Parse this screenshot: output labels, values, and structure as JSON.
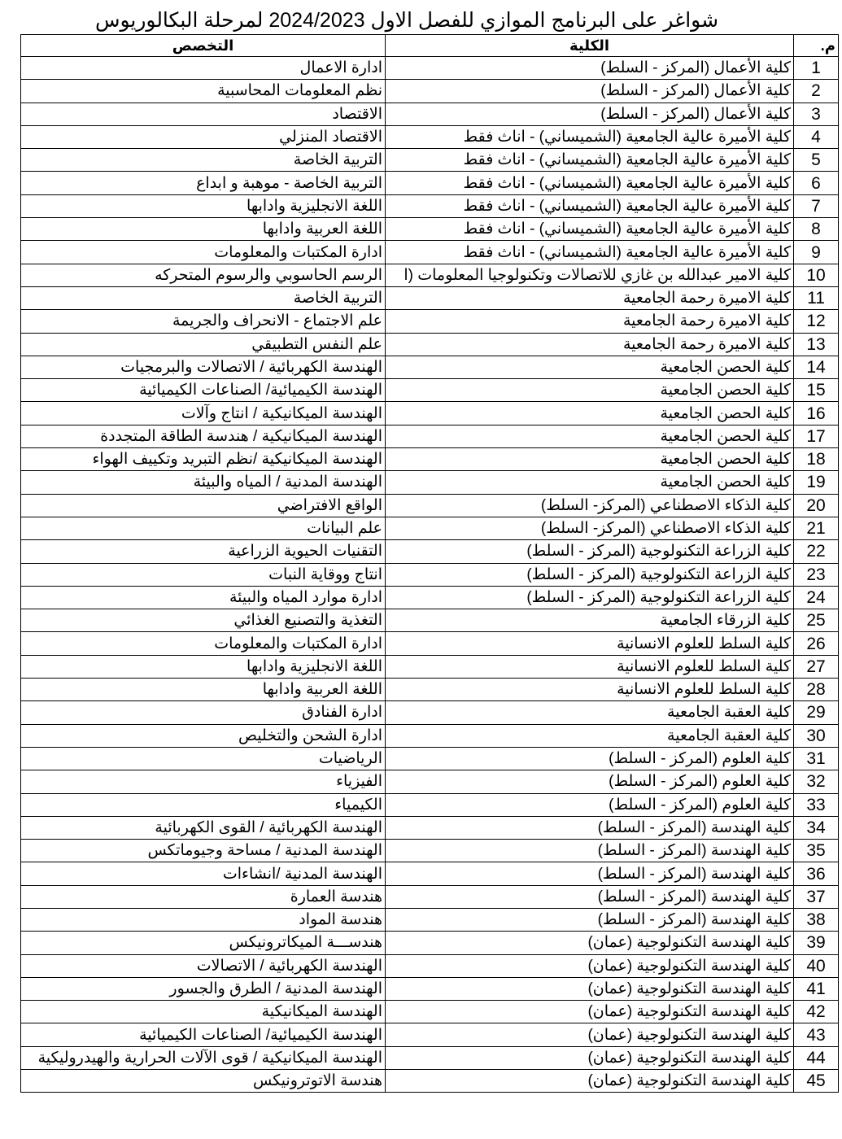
{
  "title": "شواغر على البرنامج الموازي للفصل الاول 2024/2023 لمرحلة البكالوريوس",
  "headers": {
    "num": "م.",
    "college": "الكلية",
    "major": "التخصص"
  },
  "rows": [
    {
      "n": "1",
      "college": "كلية الأعمال  (المركز - السلط)",
      "major": "ادارة الاعمال"
    },
    {
      "n": "2",
      "college": "كلية الأعمال  (المركز - السلط)",
      "major": "نظم المعلومات المحاسبية"
    },
    {
      "n": "3",
      "college": "كلية الأعمال  (المركز - السلط)",
      "major": "الاقتصاد"
    },
    {
      "n": "4",
      "college": "كلية الأميرة عالية الجامعية (الشميساني) - اناث فقط",
      "major": "الاقتصاد المنزلي"
    },
    {
      "n": "5",
      "college": "كلية الأميرة عالية الجامعية (الشميساني) - اناث فقط",
      "major": "التربية الخاصة"
    },
    {
      "n": "6",
      "college": "كلية الأميرة عالية الجامعية (الشميساني) - اناث فقط",
      "major": "التربية الخاصة - موهبة و ابداع"
    },
    {
      "n": "7",
      "college": "كلية الأميرة عالية الجامعية (الشميساني) - اناث فقط",
      "major": "اللغة الانجليزية وادابها"
    },
    {
      "n": "8",
      "college": "كلية الأميرة عالية الجامعية (الشميساني) - اناث فقط",
      "major": "اللغة العربية وادابها"
    },
    {
      "n": "9",
      "college": "كلية الأميرة عالية الجامعية (الشميساني) - اناث فقط",
      "major": "ادارة المكتبات والمعلومات"
    },
    {
      "n": "10",
      "college": "كلية الامير عبدالله بن غازي للاتصالات وتكنولوجيا المعلومات (ا",
      "major": "الرسم الحاسوبي والرسوم المتحركه"
    },
    {
      "n": "11",
      "college": "كلية الاميرة رحمة الجامعية",
      "major": "التربية الخاصة"
    },
    {
      "n": "12",
      "college": "كلية الاميرة رحمة الجامعية",
      "major": "علم الاجتماع - الانحراف والجريمة"
    },
    {
      "n": "13",
      "college": "كلية الاميرة رحمة الجامعية",
      "major": "علم النفس التطبيقي"
    },
    {
      "n": "14",
      "college": "كلية الحصن الجامعية",
      "major": "الهندسة الكهربائية / الاتصالات والبرمجيات"
    },
    {
      "n": "15",
      "college": "كلية الحصن الجامعية",
      "major": "الهندسة الكيميائية/ الصناعات الكيميائية"
    },
    {
      "n": "16",
      "college": "كلية الحصن الجامعية",
      "major": "الهندسة الميكانيكية / انتاج وآلات"
    },
    {
      "n": "17",
      "college": "كلية الحصن الجامعية",
      "major": "الهندسة الميكانيكية / هندسة الطاقة المتجددة"
    },
    {
      "n": "18",
      "college": "كلية الحصن الجامعية",
      "major": "الهندسة الميكانيكية /نظم التبريد وتكييف الهواء"
    },
    {
      "n": "19",
      "college": "كلية الحصن الجامعية",
      "major": "الهندسة المدنية / المياه والبيئة"
    },
    {
      "n": "20",
      "college": "كلية الذكاء الاصطناعي (المركز- السلط)",
      "major": "الواقع الافتراضي"
    },
    {
      "n": "21",
      "college": "كلية الذكاء الاصطناعي (المركز- السلط)",
      "major": "علم البيانات"
    },
    {
      "n": "22",
      "college": "كلية الزراعة التكنولوجية  (المركز - السلط)",
      "major": "التقنيات الحيوية الزراعية"
    },
    {
      "n": "23",
      "college": "كلية الزراعة التكنولوجية  (المركز - السلط)",
      "major": "انتاج ووقاية النبات"
    },
    {
      "n": "24",
      "college": "كلية الزراعة التكنولوجية  (المركز - السلط)",
      "major": "ادارة موارد المياه والبيئة"
    },
    {
      "n": "25",
      "college": "كلية الزرقاء الجامعية",
      "major": "التغذية والتصنيع الغذائي"
    },
    {
      "n": "26",
      "college": "كلية السلط للعلوم الانسانية",
      "major": "ادارة المكتبات والمعلومات"
    },
    {
      "n": "27",
      "college": "كلية السلط للعلوم الانسانية",
      "major": "اللغة الانجليزية وادابها"
    },
    {
      "n": "28",
      "college": "كلية السلط للعلوم الانسانية",
      "major": "اللغة العربية وادابها"
    },
    {
      "n": "29",
      "college": "كلية العقبة الجامعية",
      "major": "ادارة الفنادق"
    },
    {
      "n": "30",
      "college": "كلية العقبة الجامعية",
      "major": "ادارة الشحن والتخليص"
    },
    {
      "n": "31",
      "college": "كلية العلوم (المركز - السلط)",
      "major": "الرياضيات"
    },
    {
      "n": "32",
      "college": "كلية العلوم (المركز - السلط)",
      "major": "الفيزياء"
    },
    {
      "n": "33",
      "college": "كلية العلوم (المركز - السلط)",
      "major": "الكيمياء"
    },
    {
      "n": "34",
      "college": "كلية الهندسة  (المركز - السلط)",
      "major": "الهندسة الكهربائية / القوى الكهربائية"
    },
    {
      "n": "35",
      "college": "كلية الهندسة  (المركز - السلط)",
      "major": "الهندسة المدنية / مساحة وجيوماتكس"
    },
    {
      "n": "36",
      "college": "كلية الهندسة  (المركز - السلط)",
      "major": "الهندسة المدنية /انشاءات"
    },
    {
      "n": "37",
      "college": "كلية الهندسة (المركز - السلط)",
      "major": "هندسة العمارة"
    },
    {
      "n": "38",
      "college": "كلية الهندسة (المركز - السلط)",
      "major": "هندسة المواد"
    },
    {
      "n": "39",
      "college": "كلية الهندسة التكنولوجية (عمان)",
      "major": "هندســـة الميكاترونيكس"
    },
    {
      "n": "40",
      "college": "كلية الهندسة التكنولوجية (عمان)",
      "major": "الهندسة الكهربائية / الاتصالات"
    },
    {
      "n": "41",
      "college": "كلية الهندسة التكنولوجية (عمان)",
      "major": "الهندسة المدنية / الطرق والجسور"
    },
    {
      "n": "42",
      "college": "كلية الهندسة التكنولوجية (عمان)",
      "major": "الهندسة الميكانيكية"
    },
    {
      "n": "43",
      "college": "كلية الهندسة التكنولوجية (عمان)",
      "major": "الهندسة الكيميائية/ الصناعات الكيميائية"
    },
    {
      "n": "44",
      "college": "كلية الهندسة التكنولوجية (عمان)",
      "major": "الهندسة الميكانيكية / قوى الآلات الحرارية والهيدروليكية"
    },
    {
      "n": "45",
      "college": "كلية الهندسة التكنولوجية (عمان)",
      "major": "هندسة الاتوترونيكس"
    }
  ]
}
